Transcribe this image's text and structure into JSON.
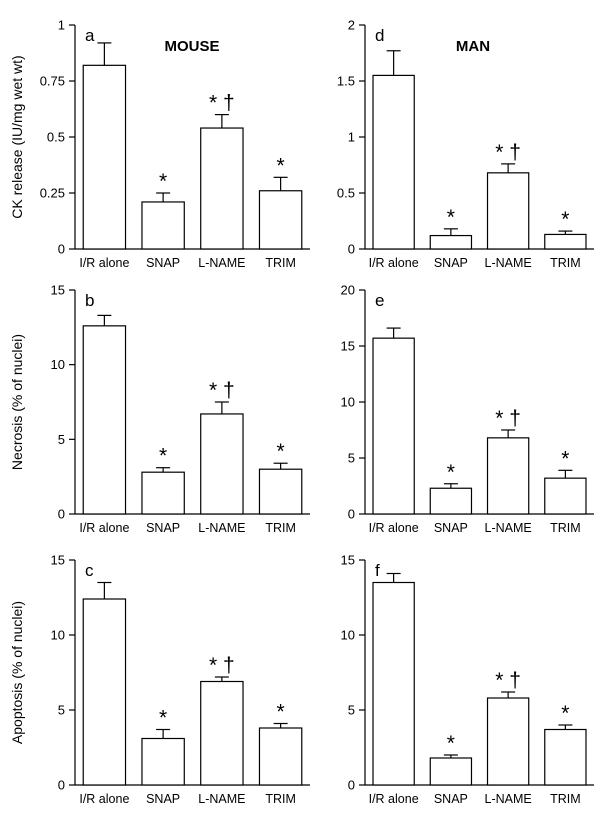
{
  "figure": {
    "columns": [
      {
        "id": "mouse",
        "title": "MOUSE"
      },
      {
        "id": "man",
        "title": "MAN"
      }
    ],
    "rows": [
      {
        "ylabel": "CK release (IU/mg wet wt)"
      },
      {
        "ylabel": "Necrosis (% of nuclei)"
      },
      {
        "ylabel": "Apoptosis (% of nuclei)"
      }
    ]
  },
  "chart_data": [
    {
      "type": "bar",
      "panel": "a",
      "column": "MOUSE",
      "row": 0,
      "categories": [
        "I/R alone",
        "SNAP",
        "L-NAME",
        "TRIM"
      ],
      "values": [
        0.82,
        0.21,
        0.54,
        0.26
      ],
      "errors": [
        0.1,
        0.04,
        0.06,
        0.06
      ],
      "markers": [
        "",
        "*",
        "* †",
        "*"
      ],
      "ylabel": "CK release (IU/mg wet wt)",
      "ylim": [
        0,
        1
      ],
      "yticks": [
        0,
        0.25,
        0.5,
        0.75,
        1
      ],
      "ytick_labels": [
        "0",
        "0.25",
        "0.5",
        "0.75",
        "1"
      ]
    },
    {
      "type": "bar",
      "panel": "d",
      "column": "MAN",
      "row": 0,
      "categories": [
        "I/R alone",
        "SNAP",
        "L-NAME",
        "TRIM"
      ],
      "values": [
        1.55,
        0.12,
        0.68,
        0.13
      ],
      "errors": [
        0.22,
        0.06,
        0.08,
        0.03
      ],
      "markers": [
        "",
        "*",
        "* †",
        "*"
      ],
      "ylabel": "",
      "ylim": [
        0,
        2
      ],
      "yticks": [
        0,
        0.5,
        1,
        1.5,
        2
      ],
      "ytick_labels": [
        "0",
        "0.5",
        "1",
        "1.5",
        "2"
      ]
    },
    {
      "type": "bar",
      "panel": "b",
      "column": "MOUSE",
      "row": 1,
      "categories": [
        "I/R alone",
        "SNAP",
        "L-NAME",
        "TRIM"
      ],
      "values": [
        12.6,
        2.8,
        6.7,
        3.0
      ],
      "errors": [
        0.7,
        0.3,
        0.8,
        0.4
      ],
      "markers": [
        "",
        "*",
        "* †",
        "*"
      ],
      "ylabel": "Necrosis (% of nuclei)",
      "ylim": [
        0,
        15
      ],
      "yticks": [
        0,
        5,
        10,
        15
      ],
      "ytick_labels": [
        "0",
        "5",
        "10",
        "15"
      ]
    },
    {
      "type": "bar",
      "panel": "e",
      "column": "MAN",
      "row": 1,
      "categories": [
        "I/R alone",
        "SNAP",
        "L-NAME",
        "TRIM"
      ],
      "values": [
        15.7,
        2.3,
        6.8,
        3.2
      ],
      "errors": [
        0.9,
        0.4,
        0.7,
        0.7
      ],
      "markers": [
        "",
        "*",
        "* †",
        "*"
      ],
      "ylabel": "",
      "ylim": [
        0,
        20
      ],
      "yticks": [
        0,
        5,
        10,
        15,
        20
      ],
      "ytick_labels": [
        "0",
        "5",
        "10",
        "15",
        "20"
      ]
    },
    {
      "type": "bar",
      "panel": "c",
      "column": "MOUSE",
      "row": 2,
      "categories": [
        "I/R alone",
        "SNAP",
        "L-NAME",
        "TRIM"
      ],
      "values": [
        12.4,
        3.1,
        6.9,
        3.8
      ],
      "errors": [
        1.1,
        0.6,
        0.3,
        0.3
      ],
      "markers": [
        "",
        "*",
        "* †",
        "*"
      ],
      "ylabel": "Apoptosis (% of nuclei)",
      "ylim": [
        0,
        15
      ],
      "yticks": [
        0,
        5,
        10,
        15
      ],
      "ytick_labels": [
        "0",
        "5",
        "10",
        "15"
      ]
    },
    {
      "type": "bar",
      "panel": "f",
      "column": "MAN",
      "row": 2,
      "categories": [
        "I/R alone",
        "SNAP",
        "L-NAME",
        "TRIM"
      ],
      "values": [
        13.5,
        1.8,
        5.8,
        3.7
      ],
      "errors": [
        0.6,
        0.2,
        0.4,
        0.3
      ],
      "markers": [
        "",
        "*",
        "* †",
        "*"
      ],
      "ylabel": "",
      "ylim": [
        0,
        15
      ],
      "yticks": [
        0,
        5,
        10,
        15
      ],
      "ytick_labels": [
        "0",
        "5",
        "10",
        "15"
      ]
    }
  ]
}
